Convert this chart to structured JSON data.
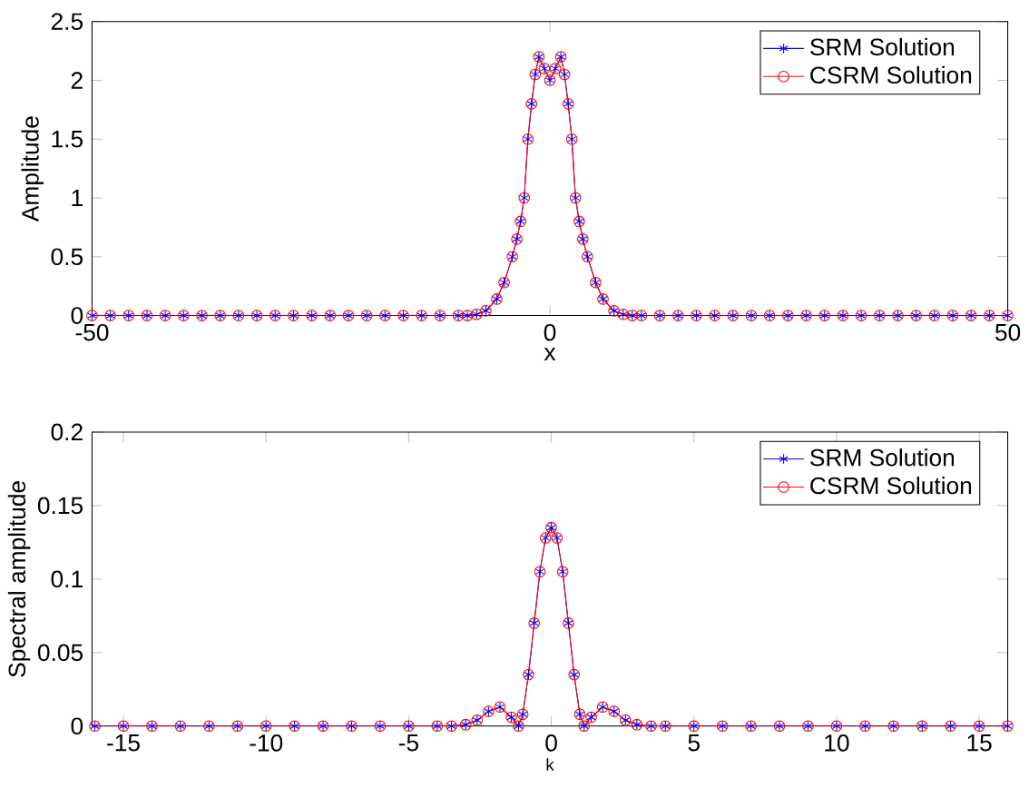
{
  "chart_data": [
    {
      "type": "line",
      "xlabel": "x",
      "ylabel": "Amplitude",
      "xlim": [
        -50,
        50
      ],
      "ylim": [
        0,
        2.5
      ],
      "xticks": [
        -50,
        0,
        50
      ],
      "yticks": [
        0,
        0.5,
        1,
        1.5,
        2,
        2.5
      ],
      "legend": "top right",
      "x": [
        -50,
        -48,
        -46,
        -44,
        -42,
        -40,
        -38,
        -36,
        -34,
        -32,
        -30,
        -28,
        -26,
        -24,
        -22,
        -20,
        -18,
        -16,
        -14,
        -12,
        -10,
        -9,
        -8,
        -7,
        -5.8,
        -5,
        -4.1,
        -3.6,
        -3.2,
        -2.8,
        -2.4,
        -2,
        -1.6,
        -1.2,
        -0.6,
        0,
        0.6,
        1.2,
        1.6,
        2,
        2.4,
        2.8,
        3.2,
        3.6,
        4.1,
        5,
        5.8,
        7,
        8,
        9,
        10,
        12,
        14,
        16,
        18,
        20,
        22,
        24,
        26,
        28,
        30,
        32,
        34,
        36,
        38,
        40,
        42,
        44,
        46,
        48,
        50
      ],
      "series": [
        {
          "name": "SRM Solution",
          "color": "#0000ff",
          "marker": "cross",
          "values": [
            0,
            0,
            0,
            0,
            0,
            0,
            0,
            0,
            0,
            0,
            0,
            0,
            0,
            0,
            0,
            0,
            0,
            0,
            0,
            0,
            0,
            0,
            0.01,
            0.04,
            0.14,
            0.28,
            0.5,
            0.65,
            0.8,
            1.0,
            1.5,
            1.8,
            2.05,
            2.2,
            2.1,
            2.0,
            2.1,
            2.2,
            2.05,
            1.8,
            1.5,
            1.0,
            0.8,
            0.65,
            0.5,
            0.28,
            0.14,
            0.04,
            0.01,
            0,
            0,
            0,
            0,
            0,
            0,
            0,
            0,
            0,
            0,
            0,
            0,
            0,
            0,
            0,
            0,
            0,
            0,
            0,
            0,
            0,
            0
          ]
        },
        {
          "name": "CSRM Solution",
          "color": "#ff0000",
          "marker": "circle",
          "values": [
            0,
            0,
            0,
            0,
            0,
            0,
            0,
            0,
            0,
            0,
            0,
            0,
            0,
            0,
            0,
            0,
            0,
            0,
            0,
            0,
            0,
            0,
            0.01,
            0.04,
            0.14,
            0.28,
            0.5,
            0.65,
            0.8,
            1.0,
            1.5,
            1.8,
            2.05,
            2.2,
            2.1,
            2.0,
            2.1,
            2.2,
            2.05,
            1.8,
            1.5,
            1.0,
            0.8,
            0.65,
            0.5,
            0.28,
            0.14,
            0.04,
            0.01,
            0,
            0,
            0,
            0,
            0,
            0,
            0,
            0,
            0,
            0,
            0,
            0,
            0,
            0,
            0,
            0,
            0,
            0,
            0,
            0,
            0,
            0
          ]
        }
      ]
    },
    {
      "type": "line",
      "xlabel": "k",
      "ylabel": "Spectral amplitude",
      "xlim": [
        -16.1,
        16
      ],
      "ylim": [
        0,
        0.2
      ],
      "xticks": [
        -15,
        -10,
        -5,
        0,
        5,
        10,
        15
      ],
      "yticks": [
        0,
        0.05,
        0.1,
        0.15,
        0.2
      ],
      "legend": "top right",
      "x": [
        -16,
        -15,
        -14,
        -13,
        -12,
        -11,
        -10,
        -9,
        -8,
        -7,
        -6,
        -5,
        -4,
        -3.5,
        -3,
        -2.6,
        -2.2,
        -1.8,
        -1.4,
        -1.15,
        -1,
        -0.8,
        -0.6,
        -0.4,
        -0.2,
        0,
        0.2,
        0.4,
        0.6,
        0.8,
        1,
        1.15,
        1.4,
        1.8,
        2.2,
        2.6,
        3,
        3.5,
        4,
        5,
        6,
        7,
        8,
        9,
        10,
        11,
        12,
        13,
        14,
        15,
        16
      ],
      "series": [
        {
          "name": "SRM Solution",
          "color": "#0000ff",
          "marker": "cross",
          "values": [
            0,
            0,
            0,
            0,
            0,
            0,
            0,
            0,
            0,
            0,
            0,
            0,
            0,
            0,
            0.001,
            0.004,
            0.01,
            0.013,
            0.006,
            0,
            0.008,
            0.035,
            0.07,
            0.105,
            0.128,
            0.135,
            0.128,
            0.105,
            0.07,
            0.035,
            0.008,
            0,
            0.006,
            0.013,
            0.01,
            0.004,
            0.001,
            0,
            0,
            0,
            0,
            0,
            0,
            0,
            0,
            0,
            0,
            0,
            0,
            0,
            0
          ]
        },
        {
          "name": "CSRM Solution",
          "color": "#ff0000",
          "marker": "circle",
          "values": [
            0,
            0,
            0,
            0,
            0,
            0,
            0,
            0,
            0,
            0,
            0,
            0,
            0,
            0,
            0.001,
            0.004,
            0.01,
            0.013,
            0.006,
            0,
            0.008,
            0.035,
            0.07,
            0.105,
            0.128,
            0.135,
            0.128,
            0.105,
            0.07,
            0.035,
            0.008,
            0,
            0.006,
            0.013,
            0.01,
            0.004,
            0.001,
            0,
            0,
            0,
            0,
            0,
            0,
            0,
            0,
            0,
            0,
            0,
            0,
            0,
            0
          ]
        }
      ]
    }
  ]
}
